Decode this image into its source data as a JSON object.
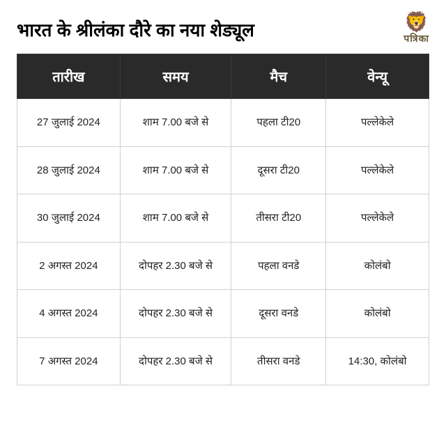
{
  "header": {
    "title": "भारत के श्रीलंका दौरे का नया शेड्यूल",
    "brand": "पत्रिका",
    "lion_glyph": "🦁"
  },
  "table": {
    "type": "table",
    "columns": [
      "तारीख",
      "समय",
      "मैच",
      "वेन्यू"
    ],
    "rows": [
      [
        "27 जुलाई 2024",
        "शाम 7.00 बजे से",
        "पहला टी20",
        "पल्लेकेले"
      ],
      [
        "28 जुलाई 2024",
        "शाम 7.00 बजे से",
        "दूसरा टी20",
        "पल्लेकेले"
      ],
      [
        "30 जुलाई 2024",
        "शाम 7.00 बजे से",
        "तीसरा टी20",
        "पल्लेकेले"
      ],
      [
        "2 अगस्त 2024",
        "दोपहर 2.30 बजे से",
        "पहला वनडे",
        "कोलंबो"
      ],
      [
        "4 अगस्त 2024",
        "दोपहर 2.30 बजे से",
        "दूसरा वनडे",
        "कोलंबो"
      ],
      [
        "7 अगस्त 2024",
        "दोपहर 2.30 बजे से",
        "तीसरा वनडे",
        "14:30, कोलंबो"
      ]
    ],
    "column_widths_pct": [
      25,
      27,
      23,
      25
    ],
    "header_bg": "#2a2a2a",
    "header_text_color": "#ffffff",
    "header_fontsize": 20,
    "cell_fontsize": 15,
    "cell_text_color": "#222222",
    "border_color": "#d0d0d0",
    "background_color": "#ffffff",
    "title_color": "#000000",
    "title_fontsize": 26,
    "brand_color": "#6b5a3a"
  }
}
